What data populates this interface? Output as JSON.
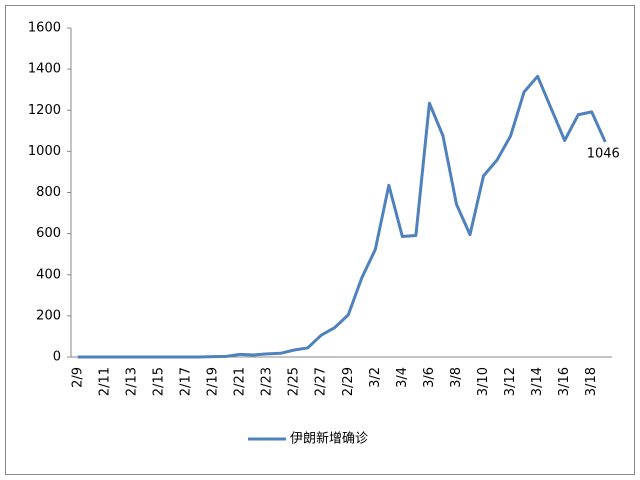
{
  "chart_data": {
    "type": "line",
    "categories": [
      "2/9",
      null,
      "2/11",
      null,
      "2/13",
      null,
      "2/15",
      null,
      "2/17",
      null,
      "2/19",
      null,
      "2/21",
      null,
      "2/23",
      null,
      "2/25",
      null,
      "2/27",
      null,
      "2/29",
      null,
      "3/2",
      null,
      "3/4",
      null,
      "3/6",
      null,
      "3/8",
      null,
      "3/10",
      null,
      "3/12",
      null,
      "3/14",
      null,
      "3/16",
      null,
      "3/18",
      null
    ],
    "series": [
      {
        "name": "伊朗新增确诊",
        "color": "#4f81bd",
        "values": [
          0,
          0,
          0,
          0,
          0,
          0,
          0,
          0,
          0,
          0,
          2,
          3,
          13,
          10,
          15,
          18,
          34,
          44,
          106,
          143,
          205,
          385,
          523,
          835,
          586,
          591,
          1234,
          1076,
          743,
          595,
          881,
          958,
          1075,
          1289,
          1365,
          1209,
          1053,
          1178,
          1192,
          1046
        ]
      }
    ],
    "ylim": [
      0,
      1600
    ],
    "yticks": [
      0,
      200,
      400,
      600,
      800,
      1000,
      1200,
      1400,
      1600
    ],
    "legend": "bottom"
  }
}
